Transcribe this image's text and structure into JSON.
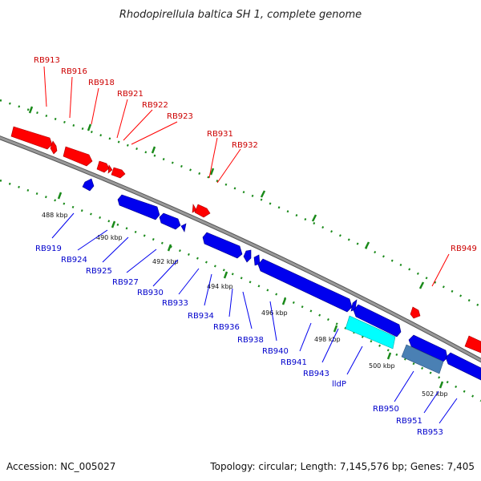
{
  "title": "Rhodopirellula baltica SH 1, complete genome",
  "footer": {
    "accession": "Accession: NC_005027",
    "summary": "Topology: circular; Length: 7,145,576 bp; Genes: 7,405"
  },
  "colors": {
    "forward_gene": "#ff0000",
    "reverse_gene": "#0000ee",
    "highlight_gene": "#00ffff",
    "rna_gene": "#4682b4",
    "backbone": "#808080",
    "tick": "#006400"
  },
  "scale_labels": [
    "488 kbp",
    "490 kbp",
    "492 kbp",
    "494 kbp",
    "496 kbp",
    "498 kbp",
    "500 kbp",
    "502 kbp"
  ],
  "forward_labels": [
    "RB913",
    "RB916",
    "RB918",
    "RB921",
    "RB922",
    "RB923",
    "RB931",
    "RB932",
    "RB949"
  ],
  "reverse_labels": [
    "RB919",
    "RB924",
    "RB925",
    "RB927",
    "RB930",
    "RB933",
    "RB934",
    "RB936",
    "RB938",
    "RB940",
    "RB941",
    "RB943",
    "lldP",
    "RB950",
    "RB951",
    "RB953"
  ]
}
